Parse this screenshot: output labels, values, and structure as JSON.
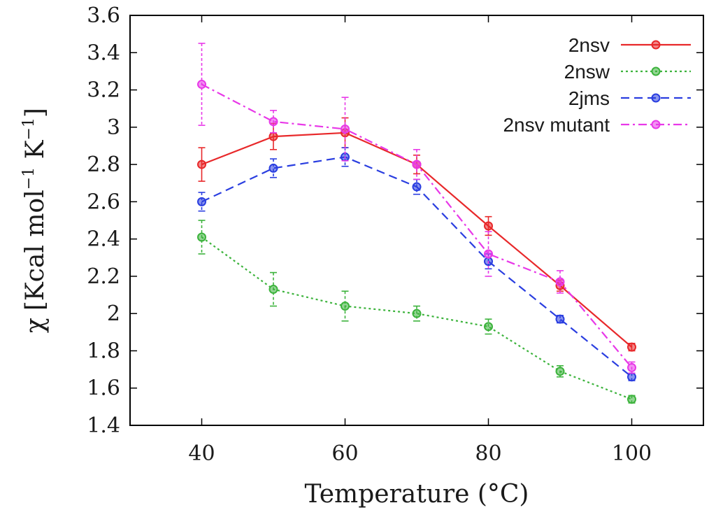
{
  "chart_data": {
    "type": "line",
    "xlabel": "Temperature (°C)",
    "ylabel": "χ [Kcal mol⁻¹ K⁻¹]",
    "ylabel_parts": {
      "chi": "χ",
      "open": "[Kcal mol",
      "exp1": "−1",
      "k": " K",
      "exp2": "−1",
      "close": "]"
    },
    "x": [
      40,
      50,
      60,
      70,
      80,
      90,
      100
    ],
    "xlim": [
      30,
      110
    ],
    "ylim": [
      1.4,
      3.6
    ],
    "xticks": [
      40,
      60,
      80,
      100
    ],
    "yticks": [
      1.4,
      1.6,
      1.8,
      2.0,
      2.2,
      2.4,
      2.6,
      2.8,
      3.0,
      3.2,
      3.4,
      3.6
    ],
    "ytick_labels": [
      "1.4",
      "1.6",
      "1.8",
      "2",
      "2.2",
      "2.4",
      "2.6",
      "2.8",
      "3",
      "3.2",
      "3.4",
      "3.6"
    ],
    "legend_position": "top-right",
    "grid": false,
    "series": [
      {
        "name": "2nsv",
        "color": "#e8282a",
        "dash": "solid",
        "values": [
          2.8,
          2.95,
          2.97,
          2.8,
          2.47,
          2.15,
          1.82
        ],
        "errors": [
          0.09,
          0.07,
          0.08,
          0.05,
          0.05,
          0.03,
          0.02
        ]
      },
      {
        "name": "2nsw",
        "color": "#3cb33c",
        "dash": "dotted",
        "values": [
          2.41,
          2.13,
          2.04,
          2.0,
          1.93,
          1.69,
          1.54
        ],
        "errors": [
          0.09,
          0.09,
          0.08,
          0.04,
          0.04,
          0.03,
          0.02
        ]
      },
      {
        "name": "2jms",
        "color": "#2a3ee0",
        "dash": "dashed",
        "values": [
          2.6,
          2.78,
          2.84,
          2.68,
          2.28,
          1.97,
          1.66
        ],
        "errors": [
          0.05,
          0.05,
          0.05,
          0.04,
          0.04,
          0.02,
          0.02
        ]
      },
      {
        "name": "2nsv mutant",
        "color": "#e838e8",
        "dash": "dashdot",
        "values": [
          3.23,
          3.03,
          2.99,
          2.8,
          2.32,
          2.17,
          1.71
        ],
        "errors": [
          0.22,
          0.06,
          0.17,
          0.08,
          0.12,
          0.06,
          0.03
        ]
      }
    ]
  }
}
